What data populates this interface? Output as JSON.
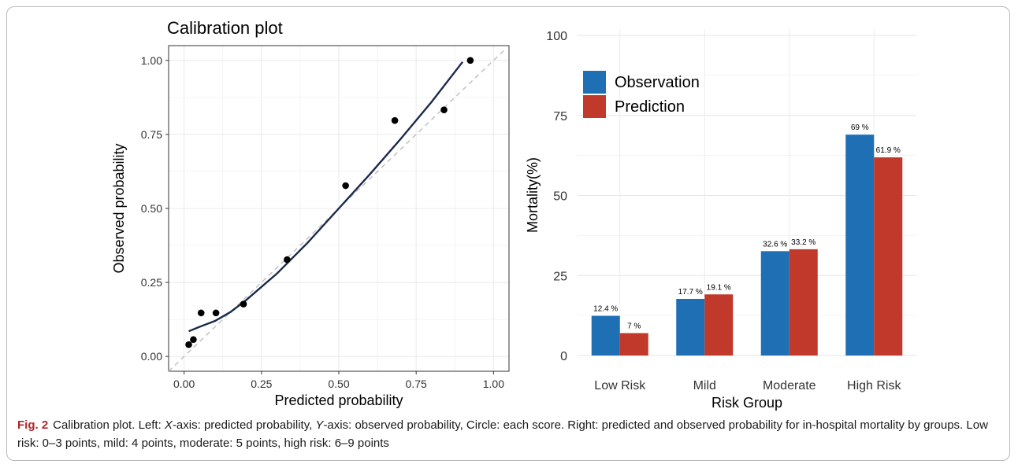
{
  "caption": {
    "label": "Fig. 2",
    "p1": "Calibration plot. Left: ",
    "x_letter": "X",
    "p2": "-axis: predicted probability, ",
    "y_letter": "Y",
    "p3": "-axis: observed probability, Circle: each score. Right: predicted and observed probability for in-hospital mortality by groups. Low risk: 0–3 points, mild: 4 points, moderate: 5 points, high risk: 6–9 points"
  },
  "chart_data": [
    {
      "type": "scatter",
      "title": "Calibration plot",
      "xlabel": "Predicted probability",
      "ylabel": "Observed probability",
      "xlim": [
        0,
        1
      ],
      "ylim": [
        0,
        1
      ],
      "x_ticks": [
        "0.00",
        "0.25",
        "0.50",
        "0.75",
        "1.00"
      ],
      "y_ticks": [
        "0.00",
        "0.25",
        "0.50",
        "0.75",
        "1.00"
      ],
      "grid": true,
      "points": [
        {
          "x": 0.015,
          "y": 0.04
        },
        {
          "x": 0.03,
          "y": 0.057
        },
        {
          "x": 0.055,
          "y": 0.147
        },
        {
          "x": 0.103,
          "y": 0.147
        },
        {
          "x": 0.192,
          "y": 0.177
        },
        {
          "x": 0.333,
          "y": 0.327
        },
        {
          "x": 0.522,
          "y": 0.577
        },
        {
          "x": 0.681,
          "y": 0.797
        },
        {
          "x": 0.84,
          "y": 0.833
        },
        {
          "x": 0.925,
          "y": 1.0
        }
      ],
      "smooth_curve": [
        {
          "x": 0.015,
          "y": 0.085
        },
        {
          "x": 0.05,
          "y": 0.1
        },
        {
          "x": 0.1,
          "y": 0.12
        },
        {
          "x": 0.15,
          "y": 0.15
        },
        {
          "x": 0.2,
          "y": 0.19
        },
        {
          "x": 0.3,
          "y": 0.28
        },
        {
          "x": 0.4,
          "y": 0.385
        },
        {
          "x": 0.5,
          "y": 0.5
        },
        {
          "x": 0.6,
          "y": 0.615
        },
        {
          "x": 0.7,
          "y": 0.735
        },
        {
          "x": 0.8,
          "y": 0.86
        },
        {
          "x": 0.9,
          "y": 0.995
        }
      ],
      "reference_line": [
        {
          "x": 0,
          "y": 0
        },
        {
          "x": 1,
          "y": 1
        }
      ]
    },
    {
      "type": "bar",
      "xlabel": "Risk Group",
      "ylabel": "Mortality(%)",
      "ylim": [
        0,
        100
      ],
      "y_ticks": [
        "0",
        "25",
        "50",
        "75",
        "100"
      ],
      "categories": [
        "Low Risk",
        "Mild",
        "Moderate",
        "High Risk"
      ],
      "legend_position": "top-left",
      "grid": true,
      "series": [
        {
          "name": "Observation",
          "color": "#1f6fb5",
          "values": [
            12.4,
            17.7,
            32.6,
            69
          ],
          "labels": [
            "12.4 %",
            "17.7 %",
            "32.6 %",
            "69 %"
          ]
        },
        {
          "name": "Prediction",
          "color": "#c0392b",
          "values": [
            7,
            19.1,
            33.2,
            61.9
          ],
          "labels": [
            "7 %",
            "19.1 %",
            "33.2 %",
            "61.9 %"
          ]
        }
      ]
    }
  ]
}
